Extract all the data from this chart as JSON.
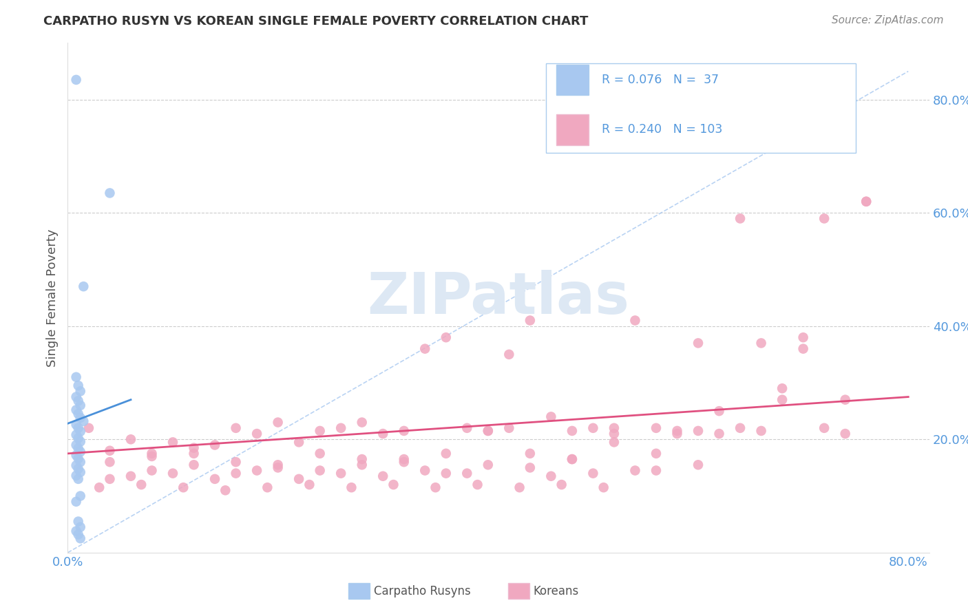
{
  "title": "CARPATHO RUSYN VS KOREAN SINGLE FEMALE POVERTY CORRELATION CHART",
  "source": "Source: ZipAtlas.com",
  "ylabel": "Single Female Poverty",
  "carpatho_R": 0.076,
  "carpatho_N": 37,
  "korean_R": 0.24,
  "korean_N": 103,
  "carpatho_color": "#a8c8f0",
  "korean_color": "#f0a8c0",
  "trend_carpatho_color": "#4a90d9",
  "trend_korean_color": "#e05080",
  "diag_color": "#a8c8f0",
  "grid_color": "#cccccc",
  "tick_color": "#5599dd",
  "label_color": "#555555",
  "title_color": "#333333",
  "source_color": "#888888",
  "legend_border_color": "#aaccee",
  "watermark_color": "#dde8f4",
  "xlim": [
    0.0,
    0.82
  ],
  "ylim": [
    0.0,
    0.9
  ],
  "ytick_vals": [
    0.2,
    0.4,
    0.6,
    0.8
  ],
  "ytick_labels": [
    "20.0%",
    "40.0%",
    "60.0%",
    "80.0%"
  ],
  "xtick_vals": [
    0.0,
    0.8
  ],
  "xtick_labels": [
    "0.0%",
    "80.0%"
  ],
  "carpatho_x": [
    0.008,
    0.04,
    0.015,
    0.008,
    0.01,
    0.012,
    0.008,
    0.01,
    0.012,
    0.008,
    0.01,
    0.012,
    0.015,
    0.008,
    0.01,
    0.012,
    0.008,
    0.01,
    0.012,
    0.008,
    0.01,
    0.012,
    0.008,
    0.01,
    0.012,
    0.008,
    0.01,
    0.012,
    0.008,
    0.01,
    0.012,
    0.008,
    0.01,
    0.012,
    0.008,
    0.01,
    0.012
  ],
  "carpatho_y": [
    0.835,
    0.635,
    0.47,
    0.31,
    0.295,
    0.285,
    0.275,
    0.268,
    0.26,
    0.252,
    0.245,
    0.238,
    0.232,
    0.226,
    0.22,
    0.214,
    0.208,
    0.202,
    0.196,
    0.19,
    0.184,
    0.178,
    0.172,
    0.166,
    0.16,
    0.154,
    0.148,
    0.142,
    0.136,
    0.13,
    0.1,
    0.09,
    0.055,
    0.045,
    0.038,
    0.032,
    0.025
  ],
  "korean_x": [
    0.02,
    0.04,
    0.06,
    0.08,
    0.1,
    0.12,
    0.14,
    0.16,
    0.18,
    0.2,
    0.22,
    0.24,
    0.26,
    0.28,
    0.3,
    0.32,
    0.34,
    0.36,
    0.38,
    0.4,
    0.42,
    0.44,
    0.46,
    0.48,
    0.5,
    0.52,
    0.54,
    0.56,
    0.58,
    0.6,
    0.62,
    0.64,
    0.66,
    0.68,
    0.7,
    0.72,
    0.74,
    0.76,
    0.04,
    0.08,
    0.12,
    0.16,
    0.2,
    0.24,
    0.28,
    0.32,
    0.36,
    0.4,
    0.44,
    0.48,
    0.52,
    0.56,
    0.6,
    0.04,
    0.08,
    0.12,
    0.16,
    0.2,
    0.24,
    0.28,
    0.32,
    0.36,
    0.4,
    0.44,
    0.48,
    0.52,
    0.56,
    0.6,
    0.64,
    0.68,
    0.72,
    0.76,
    0.06,
    0.1,
    0.14,
    0.18,
    0.22,
    0.26,
    0.3,
    0.34,
    0.38,
    0.42,
    0.46,
    0.5,
    0.54,
    0.58,
    0.62,
    0.66,
    0.7,
    0.74,
    0.03,
    0.07,
    0.11,
    0.15,
    0.19,
    0.23,
    0.27,
    0.31,
    0.35,
    0.39,
    0.43,
    0.47,
    0.51
  ],
  "korean_y": [
    0.22,
    0.18,
    0.2,
    0.175,
    0.195,
    0.185,
    0.19,
    0.22,
    0.21,
    0.23,
    0.195,
    0.215,
    0.22,
    0.23,
    0.21,
    0.215,
    0.36,
    0.38,
    0.22,
    0.215,
    0.22,
    0.41,
    0.24,
    0.215,
    0.22,
    0.21,
    0.41,
    0.22,
    0.215,
    0.37,
    0.21,
    0.22,
    0.215,
    0.27,
    0.38,
    0.22,
    0.21,
    0.62,
    0.16,
    0.17,
    0.175,
    0.16,
    0.155,
    0.175,
    0.165,
    0.16,
    0.175,
    0.215,
    0.175,
    0.165,
    0.195,
    0.175,
    0.215,
    0.13,
    0.145,
    0.155,
    0.14,
    0.15,
    0.145,
    0.155,
    0.165,
    0.14,
    0.155,
    0.15,
    0.165,
    0.22,
    0.145,
    0.155,
    0.59,
    0.29,
    0.59,
    0.62,
    0.135,
    0.14,
    0.13,
    0.145,
    0.13,
    0.14,
    0.135,
    0.145,
    0.14,
    0.35,
    0.135,
    0.14,
    0.145,
    0.21,
    0.25,
    0.37,
    0.36,
    0.27,
    0.115,
    0.12,
    0.115,
    0.11,
    0.115,
    0.12,
    0.115,
    0.12,
    0.115,
    0.12,
    0.115,
    0.12,
    0.115
  ]
}
